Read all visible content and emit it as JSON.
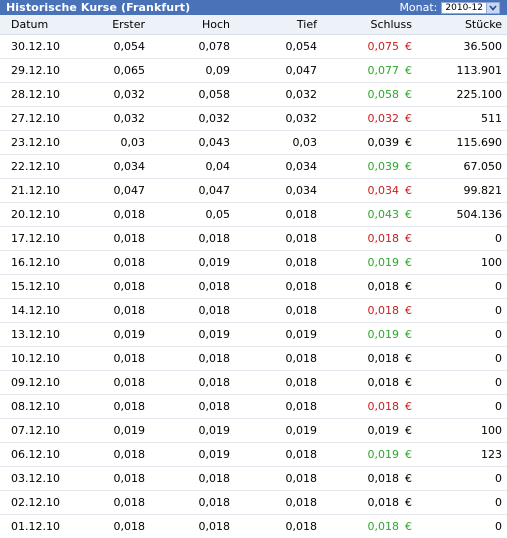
{
  "header": {
    "title": "Historische Kurse (Frankfurt)",
    "month_label": "Monat:",
    "month_value": "2010-12"
  },
  "columns": [
    "Datum",
    "Erster",
    "Hoch",
    "Tief",
    "Schluss",
    "Stücke"
  ],
  "currency_symbol": "€",
  "colors": {
    "up": "#2ea82e",
    "down": "#cc2020",
    "flat": "#000000",
    "header_bg": "#4a72b8"
  },
  "rows": [
    {
      "date": "30.12.10",
      "open": "0,054",
      "high": "0,078",
      "low": "0,054",
      "close": "0,075",
      "trend": "down",
      "volume": "36.500"
    },
    {
      "date": "29.12.10",
      "open": "0,065",
      "high": "0,09",
      "low": "0,047",
      "close": "0,077",
      "trend": "up",
      "volume": "113.901"
    },
    {
      "date": "28.12.10",
      "open": "0,032",
      "high": "0,058",
      "low": "0,032",
      "close": "0,058",
      "trend": "up",
      "volume": "225.100"
    },
    {
      "date": "27.12.10",
      "open": "0,032",
      "high": "0,032",
      "low": "0,032",
      "close": "0,032",
      "trend": "down",
      "volume": "511"
    },
    {
      "date": "23.12.10",
      "open": "0,03",
      "high": "0,043",
      "low": "0,03",
      "close": "0,039",
      "trend": "flat",
      "volume": "115.690"
    },
    {
      "date": "22.12.10",
      "open": "0,034",
      "high": "0,04",
      "low": "0,034",
      "close": "0,039",
      "trend": "up",
      "volume": "67.050"
    },
    {
      "date": "21.12.10",
      "open": "0,047",
      "high": "0,047",
      "low": "0,034",
      "close": "0,034",
      "trend": "down",
      "volume": "99.821"
    },
    {
      "date": "20.12.10",
      "open": "0,018",
      "high": "0,05",
      "low": "0,018",
      "close": "0,043",
      "trend": "up",
      "volume": "504.136"
    },
    {
      "date": "17.12.10",
      "open": "0,018",
      "high": "0,018",
      "low": "0,018",
      "close": "0,018",
      "trend": "down",
      "volume": "0"
    },
    {
      "date": "16.12.10",
      "open": "0,018",
      "high": "0,019",
      "low": "0,018",
      "close": "0,019",
      "trend": "up",
      "volume": "100"
    },
    {
      "date": "15.12.10",
      "open": "0,018",
      "high": "0,018",
      "low": "0,018",
      "close": "0,018",
      "trend": "flat",
      "volume": "0"
    },
    {
      "date": "14.12.10",
      "open": "0,018",
      "high": "0,018",
      "low": "0,018",
      "close": "0,018",
      "trend": "down",
      "volume": "0"
    },
    {
      "date": "13.12.10",
      "open": "0,019",
      "high": "0,019",
      "low": "0,019",
      "close": "0,019",
      "trend": "up",
      "volume": "0"
    },
    {
      "date": "10.12.10",
      "open": "0,018",
      "high": "0,018",
      "low": "0,018",
      "close": "0,018",
      "trend": "flat",
      "volume": "0"
    },
    {
      "date": "09.12.10",
      "open": "0,018",
      "high": "0,018",
      "low": "0,018",
      "close": "0,018",
      "trend": "flat",
      "volume": "0"
    },
    {
      "date": "08.12.10",
      "open": "0,018",
      "high": "0,018",
      "low": "0,018",
      "close": "0,018",
      "trend": "down",
      "volume": "0"
    },
    {
      "date": "07.12.10",
      "open": "0,019",
      "high": "0,019",
      "low": "0,019",
      "close": "0,019",
      "trend": "flat",
      "volume": "100"
    },
    {
      "date": "06.12.10",
      "open": "0,018",
      "high": "0,019",
      "low": "0,018",
      "close": "0,019",
      "trend": "up",
      "volume": "123"
    },
    {
      "date": "03.12.10",
      "open": "0,018",
      "high": "0,018",
      "low": "0,018",
      "close": "0,018",
      "trend": "flat",
      "volume": "0"
    },
    {
      "date": "02.12.10",
      "open": "0,018",
      "high": "0,018",
      "low": "0,018",
      "close": "0,018",
      "trend": "flat",
      "volume": "0"
    },
    {
      "date": "01.12.10",
      "open": "0,018",
      "high": "0,018",
      "low": "0,018",
      "close": "0,018",
      "trend": "up",
      "volume": "0"
    }
  ]
}
